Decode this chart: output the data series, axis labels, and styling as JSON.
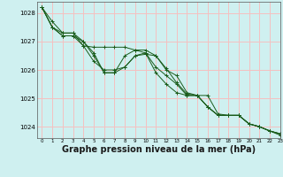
{
  "background_color": "#cff0f0",
  "grid_color": "#f5c0c0",
  "line_color": "#1a5c1a",
  "marker_color": "#1a5c1a",
  "xlabel": "Graphe pression niveau de la mer (hPa)",
  "xlabel_fontsize": 7,
  "xlim": [
    -0.5,
    23
  ],
  "ylim": [
    1023.6,
    1028.4
  ],
  "yticks": [
    1024,
    1025,
    1026,
    1027,
    1028
  ],
  "xticks": [
    0,
    1,
    2,
    3,
    4,
    5,
    6,
    7,
    8,
    9,
    10,
    11,
    12,
    13,
    14,
    15,
    16,
    17,
    18,
    19,
    20,
    21,
    22,
    23
  ],
  "series": [
    [
      1028.2,
      1027.7,
      1027.3,
      1027.3,
      1026.85,
      1026.3,
      1026.0,
      1026.0,
      1026.1,
      1026.5,
      1026.55,
      1026.5,
      1026.0,
      1025.8,
      1025.2,
      1025.1,
      1024.7,
      1024.4,
      1024.4,
      1024.4,
      1024.1,
      1024.0,
      1023.85,
      1023.7
    ],
    [
      1028.2,
      1027.5,
      1027.2,
      1027.2,
      1026.85,
      1026.8,
      1026.8,
      1026.8,
      1026.8,
      1026.7,
      1026.7,
      1026.5,
      1026.05,
      1025.55,
      1025.15,
      1025.1,
      1025.1,
      1024.45,
      1024.4,
      1024.4,
      1024.1,
      1024.0,
      1023.85,
      1023.75
    ],
    [
      1028.2,
      1027.5,
      1027.2,
      1027.2,
      1027.0,
      1026.5,
      1025.9,
      1025.9,
      1026.5,
      1026.7,
      1026.6,
      1026.1,
      1025.8,
      1025.5,
      1025.1,
      1025.1,
      1024.7,
      1024.4,
      1024.4,
      1024.4,
      1024.1,
      1024.0,
      1023.85,
      1023.75
    ],
    [
      1028.2,
      1027.5,
      1027.3,
      1027.3,
      1027.0,
      1026.6,
      1025.9,
      1025.9,
      1026.1,
      1026.5,
      1026.6,
      1025.9,
      1025.5,
      1025.2,
      1025.1,
      1025.1,
      1024.7,
      1024.4,
      1024.4,
      1024.4,
      1024.1,
      1024.0,
      1023.85,
      1023.75
    ]
  ]
}
